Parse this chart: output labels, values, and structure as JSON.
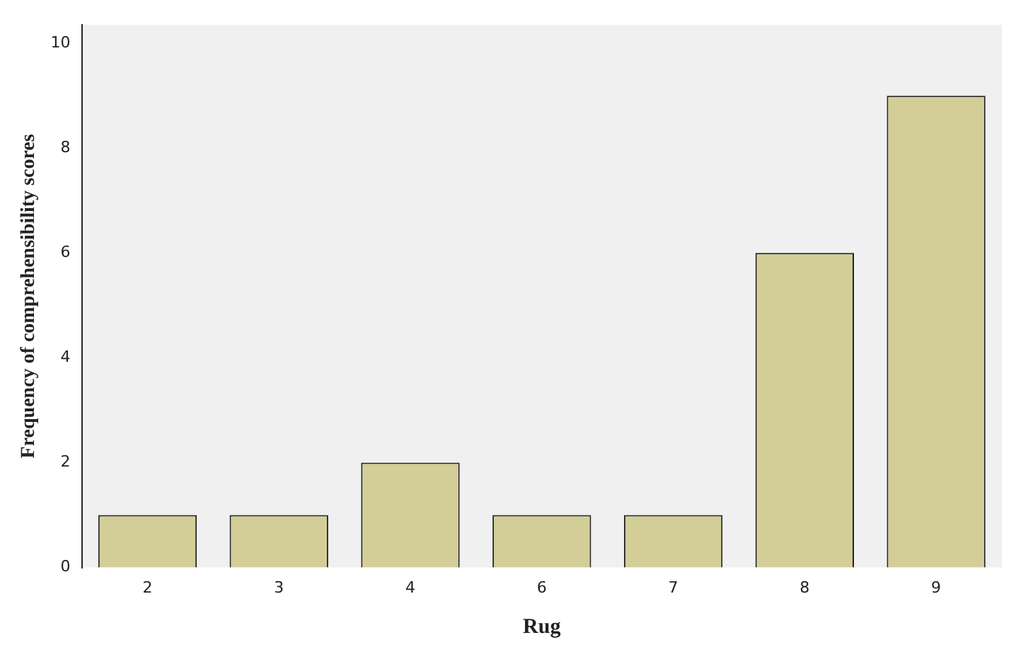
{
  "chart_data": {
    "type": "bar",
    "xlabel": "Rug",
    "ylabel": "Frequency of comprehensibility scores",
    "categories": [
      "2",
      "3",
      "4",
      "6",
      "7",
      "8",
      "9"
    ],
    "values": [
      1,
      1,
      2,
      1,
      1,
      6,
      9
    ],
    "color": "#d3ce97",
    "ylim": [
      0,
      10.35
    ],
    "yticks": [
      0,
      2,
      4,
      6,
      8,
      10
    ],
    "grid": false,
    "legend": false
  }
}
